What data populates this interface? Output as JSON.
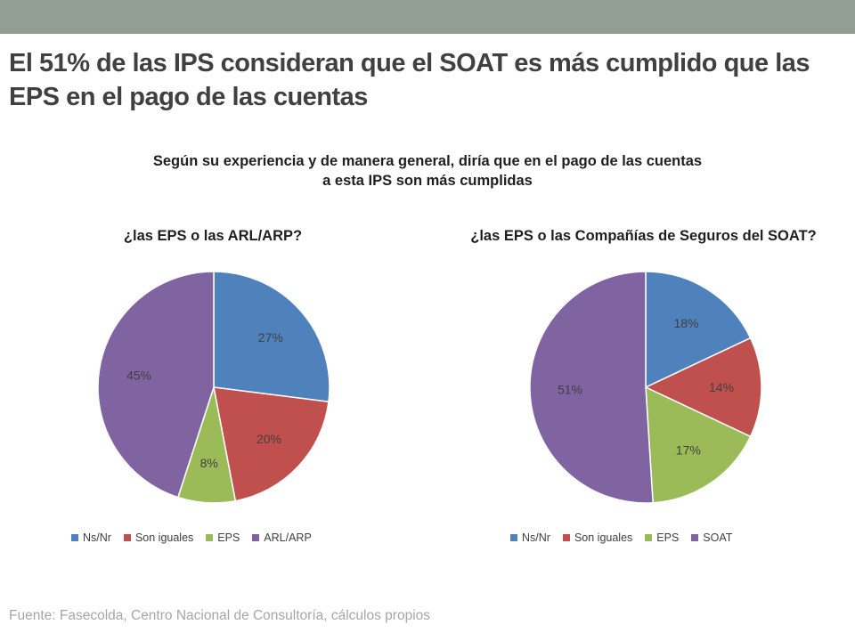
{
  "slide": {
    "title": "El 51% de las IPS consideran que el SOAT es más cumplido que las EPS en el pago de las cuentas",
    "subtitle_line1": "Según su experiencia y de manera general, diría  que en el pago de las cuentas",
    "subtitle_line2": "a esta IPS son más cumplidas",
    "source": "Fuente: Fasecolda, Centro Nacional de Consultoría, cálculos propios"
  },
  "colors": {
    "Ns/Nr": "#4f81bd",
    "Son iguales": "#c0504d",
    "EPS": "#9bbb59",
    "other": "#8064a2",
    "top_band": "#939e93"
  },
  "chart_data": [
    {
      "type": "pie",
      "title": "¿las EPS o las ARL/ARP?",
      "categories": [
        "Ns/Nr",
        "Son iguales",
        "EPS",
        "ARL/ARP"
      ],
      "values": [
        27,
        20,
        8,
        45
      ],
      "labels": [
        "27%",
        "20%",
        "8%",
        "45%"
      ],
      "colors": [
        "#4f81bd",
        "#c0504d",
        "#9bbb59",
        "#8064a2"
      ],
      "legend": "bottom"
    },
    {
      "type": "pie",
      "title": "¿las EPS o las Compañías de Seguros del SOAT?",
      "categories": [
        "Ns/Nr",
        "Son iguales",
        "EPS",
        "SOAT"
      ],
      "values": [
        18,
        14,
        17,
        51
      ],
      "labels": [
        "18%",
        "14%",
        "17%",
        "51%"
      ],
      "colors": [
        "#4f81bd",
        "#c0504d",
        "#9bbb59",
        "#8064a2"
      ],
      "legend": "bottom"
    }
  ]
}
